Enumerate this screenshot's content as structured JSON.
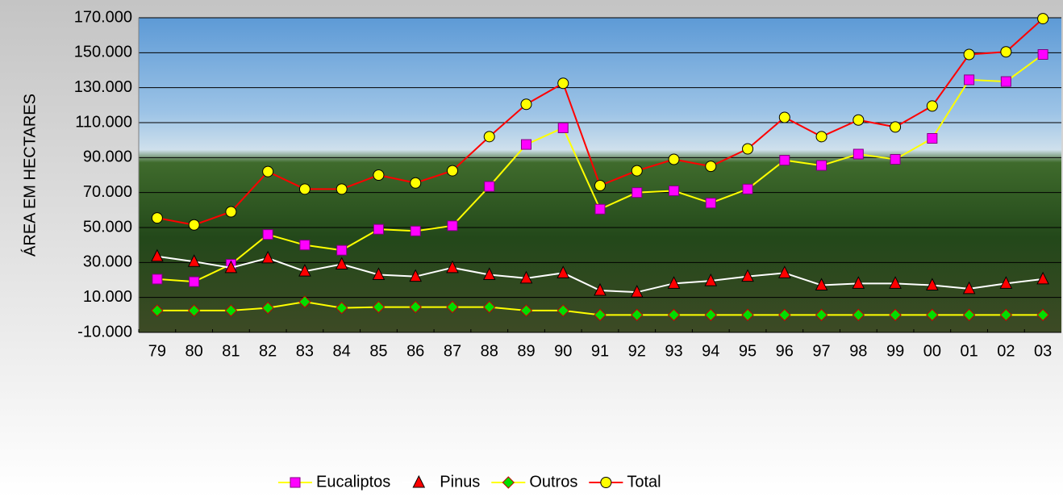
{
  "chart_data": {
    "type": "line",
    "y_label": "ÁREA EM HECTARES",
    "categories": [
      "79",
      "80",
      "81",
      "82",
      "83",
      "84",
      "85",
      "86",
      "87",
      "88",
      "89",
      "90",
      "91",
      "92",
      "93",
      "94",
      "95",
      "96",
      "97",
      "98",
      "99",
      "00",
      "01",
      "02",
      "03"
    ],
    "series": [
      {
        "name": "Eucaliptos",
        "color": "#ffff00",
        "marker": "square",
        "marker_color": "#ff00ff",
        "values": [
          20500,
          19000,
          29000,
          46000,
          40000,
          37000,
          49000,
          48000,
          51000,
          73500,
          97500,
          107000,
          60500,
          70000,
          71000,
          64000,
          72000,
          88500,
          85500,
          92000,
          89000,
          101000,
          134500,
          133500,
          149000
        ]
      },
      {
        "name": "Pinus",
        "color": "#ffffff",
        "marker": "triangle",
        "marker_color": "#ff0000",
        "values": [
          33500,
          30500,
          27000,
          32500,
          25000,
          29000,
          23000,
          22000,
          27000,
          23000,
          21000,
          24000,
          14000,
          13000,
          18000,
          19500,
          22000,
          24000,
          17000,
          18000,
          18000,
          17000,
          15000,
          18000,
          20500
        ]
      },
      {
        "name": "Outros",
        "color": "#ffff00",
        "marker": "diamond",
        "marker_color": "#00dd00",
        "values": [
          2500,
          2500,
          2500,
          4000,
          7500,
          4000,
          4500,
          4500,
          4500,
          4500,
          2500,
          2500,
          0,
          0,
          0,
          0,
          0,
          0,
          0,
          0,
          0,
          0,
          0,
          0,
          0
        ]
      },
      {
        "name": "Total",
        "color": "#ff0000",
        "marker": "circle",
        "marker_color": "#ffff00",
        "values": [
          55500,
          51500,
          59000,
          82000,
          72000,
          72000,
          80000,
          75500,
          82500,
          102000,
          120500,
          132500,
          74000,
          82500,
          89000,
          85000,
          95000,
          113000,
          102000,
          111500,
          107500,
          119500,
          149000,
          150500,
          169500
        ]
      }
    ],
    "ylim": [
      -10000,
      170000
    ],
    "yticks": [
      {
        "value": -10000,
        "label": "-10.000"
      },
      {
        "value": 10000,
        "label": "10.000"
      },
      {
        "value": 30000,
        "label": "30.000"
      },
      {
        "value": 50000,
        "label": "50.000"
      },
      {
        "value": 70000,
        "label": "70.000"
      },
      {
        "value": 90000,
        "label": "90.000"
      },
      {
        "value": 110000,
        "label": "110.000"
      },
      {
        "value": 130000,
        "label": "130.000"
      },
      {
        "value": 150000,
        "label": "150.000"
      },
      {
        "value": 170000,
        "label": "170.000"
      }
    ],
    "grid": true,
    "legend": "bottom"
  }
}
